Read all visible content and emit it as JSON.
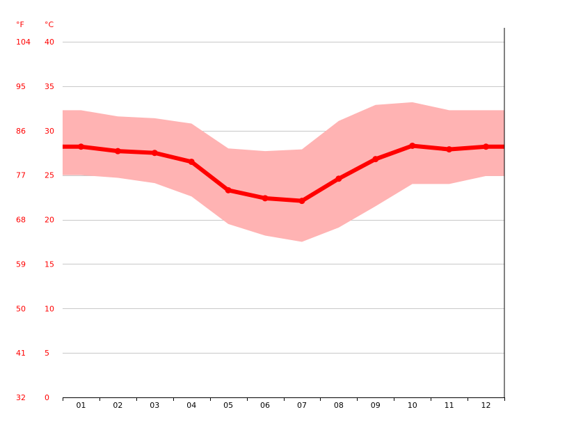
{
  "chart_data": {
    "type": "line",
    "categories": [
      "01",
      "02",
      "03",
      "04",
      "05",
      "06",
      "07",
      "08",
      "09",
      "10",
      "11",
      "12"
    ],
    "series": [
      {
        "role": "mean",
        "values": [
          28.2,
          27.7,
          27.5,
          26.5,
          23.3,
          22.4,
          22.1,
          24.6,
          26.8,
          28.3,
          27.9,
          28.2
        ]
      },
      {
        "role": "max",
        "values": [
          32.3,
          31.6,
          31.4,
          30.8,
          28.0,
          27.7,
          27.9,
          31.1,
          32.9,
          33.2,
          32.3,
          32.3
        ]
      },
      {
        "role": "min",
        "values": [
          25.0,
          24.7,
          24.1,
          22.6,
          19.5,
          18.2,
          17.5,
          19.1,
          21.5,
          24.0,
          24.0,
          24.9
        ]
      }
    ],
    "y_unit_c": "°C",
    "y_unit_f": "°F",
    "ylim": [
      0,
      40
    ],
    "yticks_c": [
      "0",
      "5",
      "10",
      "15",
      "20",
      "25",
      "30",
      "35",
      "40"
    ],
    "yticks_f": [
      "32",
      "41",
      "50",
      "59",
      "68",
      "77",
      "86",
      "95",
      "104"
    ],
    "grid": true,
    "colors": {
      "line": "#ff0000",
      "band": "#ffb3b3",
      "grid": "#c8c8c8",
      "axis": "#000000",
      "labels": "#ff0000"
    }
  }
}
